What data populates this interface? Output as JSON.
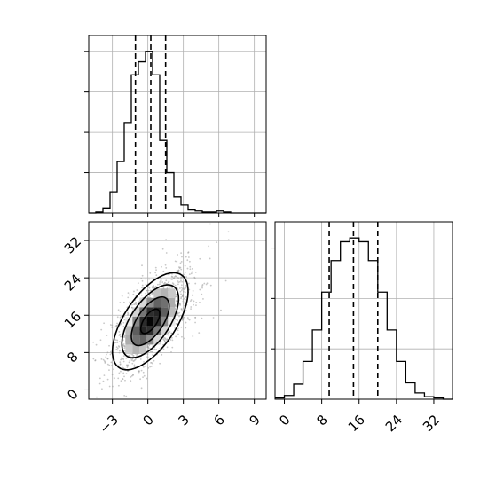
{
  "chart_data": [
    {
      "panel": "histogram-param-1",
      "type": "histogram",
      "title": "",
      "xlabel": "",
      "ylabel": "",
      "xlim": [
        -5.0,
        10.0
      ],
      "bin_edges": [
        -5.0,
        -4.4,
        -3.8,
        -3.2,
        -2.6,
        -2.0,
        -1.4,
        -0.8,
        -0.2,
        0.4,
        1.0,
        1.6,
        2.2,
        2.8,
        3.4,
        4.0,
        4.6,
        5.2,
        5.8,
        6.4,
        7.0,
        7.6,
        8.2,
        8.8,
        9.4,
        10.0
      ],
      "counts": [
        0,
        1,
        5,
        21,
        51,
        89,
        137,
        150,
        160,
        137,
        72,
        40,
        16,
        8,
        3,
        2,
        1,
        1,
        2,
        1,
        0,
        0,
        0,
        0,
        0
      ],
      "quantile_lines": [
        -1.05,
        0.25,
        1.5
      ],
      "xticks": [
        -3,
        0,
        3,
        6,
        9
      ],
      "grid": true,
      "tick_labels_shown": false
    },
    {
      "panel": "2d-density",
      "type": "scatter",
      "title": "",
      "xlabel": "",
      "ylabel": "",
      "xlim": [
        -5.0,
        10.0
      ],
      "ylim": [
        -2.0,
        36.0
      ],
      "xticks": [
        -3,
        0,
        3,
        6,
        9
      ],
      "xtick_labels": [
        "−3",
        "0",
        "3",
        "6",
        "9"
      ],
      "yticks": [
        0,
        8,
        16,
        24,
        32
      ],
      "ytick_labels": [
        "0",
        "8",
        "16",
        "24",
        "32"
      ],
      "center": [
        0.2,
        14.7
      ],
      "spread": [
        1.6,
        5.2
      ],
      "correlation": 0.62,
      "contour_levels_sigma": [
        0.5,
        1.0,
        1.5,
        2.0
      ],
      "grid": true
    },
    {
      "panel": "histogram-param-2",
      "type": "histogram",
      "title": "",
      "xlabel": "",
      "ylabel": "",
      "xlim": [
        -2.0,
        36.0
      ],
      "bin_edges": [
        -2,
        0,
        2,
        4,
        6,
        8,
        10,
        12,
        14,
        16,
        18,
        20,
        22,
        24,
        26,
        28,
        30,
        32,
        34,
        36
      ],
      "counts": [
        1,
        3,
        12,
        30,
        55,
        85,
        110,
        125,
        128,
        125,
        110,
        85,
        55,
        30,
        13,
        5,
        2,
        1,
        0
      ],
      "quantile_lines": [
        9.6,
        14.8,
        20.0
      ],
      "xticks": [
        0,
        8,
        16,
        24,
        32
      ],
      "xtick_labels": [
        "0",
        "8",
        "16",
        "24",
        "32"
      ],
      "grid": true,
      "tick_labels_shown": true
    }
  ]
}
